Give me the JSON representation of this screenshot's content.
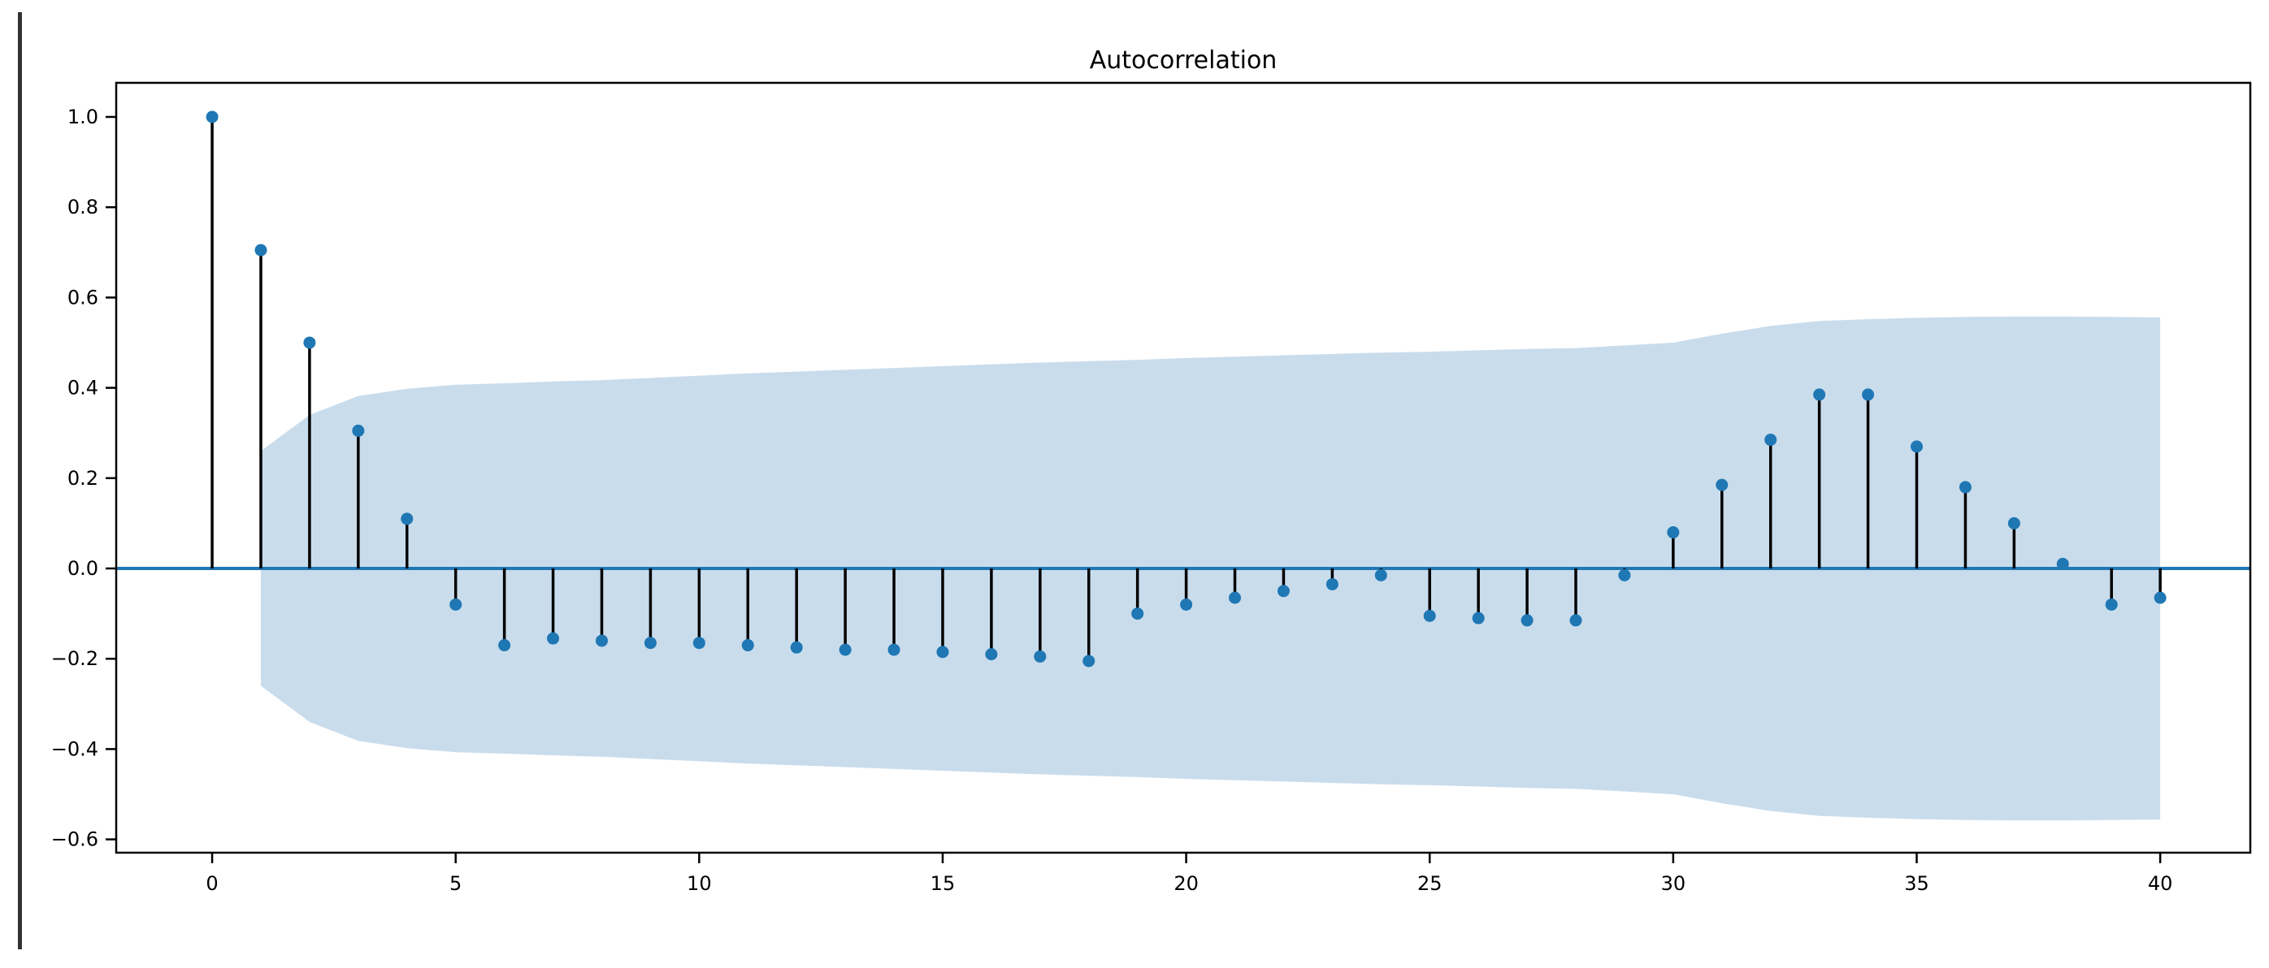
{
  "page": {
    "background": "#ffffff",
    "window_edge_color": "#333333"
  },
  "chart_data": {
    "type": "stem",
    "title": "Autocorrelation",
    "xlabel": "",
    "ylabel": "",
    "grid": false,
    "legend": null,
    "xlim": [
      -1.97,
      41.85
    ],
    "ylim": [
      -0.6295,
      1.0755
    ],
    "x_ticks": [
      0,
      5,
      10,
      15,
      20,
      25,
      30,
      35,
      40
    ],
    "x_tick_labels": [
      "0",
      "5",
      "10",
      "15",
      "20",
      "25",
      "30",
      "35",
      "40"
    ],
    "y_ticks": [
      1.0,
      0.8,
      0.6,
      0.4,
      0.2,
      0.0,
      -0.2,
      -0.4,
      -0.6
    ],
    "y_tick_labels": [
      "1.0",
      "0.8",
      "0.6",
      "0.4",
      "0.2",
      "0.0",
      "−0.2",
      "−0.4",
      "−0.6"
    ],
    "lags": [
      0,
      1,
      2,
      3,
      4,
      5,
      6,
      7,
      8,
      9,
      10,
      11,
      12,
      13,
      14,
      15,
      16,
      17,
      18,
      19,
      20,
      21,
      22,
      23,
      24,
      25,
      26,
      27,
      28,
      29,
      30,
      31,
      32,
      33,
      34,
      35,
      36,
      37,
      38,
      39,
      40
    ],
    "acf_values": [
      1.0,
      0.705,
      0.5,
      0.305,
      0.11,
      -0.08,
      -0.17,
      -0.155,
      -0.16,
      -0.165,
      -0.165,
      -0.17,
      -0.175,
      -0.18,
      -0.18,
      -0.185,
      -0.19,
      -0.195,
      -0.205,
      -0.1,
      -0.08,
      -0.065,
      -0.05,
      -0.035,
      -0.015,
      -0.105,
      -0.11,
      -0.115,
      -0.115,
      -0.015,
      0.08,
      0.185,
      0.285,
      0.385,
      0.385,
      0.27,
      0.18,
      0.1,
      0.01,
      -0.08,
      -0.065
    ],
    "confidence_band": {
      "lags": [
        1,
        2,
        3,
        4,
        5,
        6,
        7,
        8,
        9,
        10,
        11,
        12,
        13,
        14,
        15,
        16,
        17,
        18,
        19,
        20,
        21,
        22,
        23,
        24,
        25,
        26,
        27,
        28,
        29,
        30,
        31,
        32,
        33,
        34,
        35,
        36,
        37,
        38,
        39,
        40
      ],
      "half_width": [
        0.26,
        0.34,
        0.382,
        0.398,
        0.407,
        0.41,
        0.414,
        0.417,
        0.422,
        0.427,
        0.432,
        0.436,
        0.44,
        0.444,
        0.448,
        0.452,
        0.456,
        0.459,
        0.462,
        0.466,
        0.469,
        0.472,
        0.475,
        0.478,
        0.48,
        0.483,
        0.486,
        0.488,
        0.494,
        0.5,
        0.52,
        0.537,
        0.548,
        0.552,
        0.555,
        0.557,
        0.558,
        0.558,
        0.557,
        0.556
      ]
    },
    "colors": {
      "marker": "#1f77b4",
      "stem": "#000000",
      "baseline": "#1f77b4",
      "band_fill": "#c9dcec",
      "frame": "#000000",
      "text": "#000000"
    }
  }
}
